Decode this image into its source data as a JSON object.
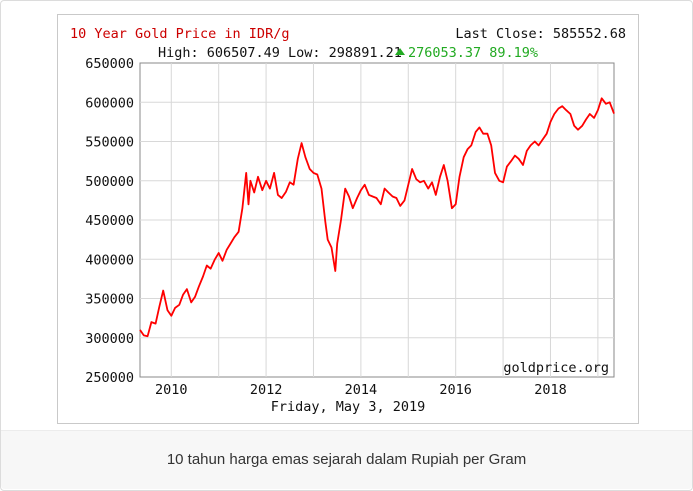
{
  "chart_data": {
    "type": "line",
    "title": "10 Year Gold Price in IDR/g",
    "last_close": "Last Close: 585552.68",
    "high_low": "High: 606507.49 Low: 298891.21",
    "change": "276053.37 89.19%",
    "date_label": "Friday, May 3, 2019",
    "watermark": "goldprice.org",
    "xlim": [
      2009.34,
      2019.34
    ],
    "ylim": [
      250000,
      650000
    ],
    "y_ticks": [
      250000,
      300000,
      350000,
      400000,
      450000,
      500000,
      550000,
      600000,
      650000
    ],
    "x_ticks": [
      2010,
      2012,
      2014,
      2016,
      2018
    ],
    "grid": true,
    "series": [
      {
        "color": "#ff0000",
        "x": [
          2009.34,
          2009.42,
          2009.5,
          2009.58,
          2009.67,
          2009.75,
          2009.83,
          2009.92,
          2010.0,
          2010.08,
          2010.17,
          2010.25,
          2010.33,
          2010.42,
          2010.5,
          2010.58,
          2010.67,
          2010.75,
          2010.83,
          2010.92,
          2011.0,
          2011.08,
          2011.17,
          2011.25,
          2011.33,
          2011.42,
          2011.5,
          2011.58,
          2011.63,
          2011.67,
          2011.75,
          2011.83,
          2011.92,
          2012.0,
          2012.08,
          2012.17,
          2012.25,
          2012.33,
          2012.42,
          2012.5,
          2012.58,
          2012.67,
          2012.75,
          2012.83,
          2012.92,
          2013.0,
          2013.08,
          2013.17,
          2013.25,
          2013.3,
          2013.38,
          2013.46,
          2013.5,
          2013.58,
          2013.67,
          2013.75,
          2013.83,
          2013.92,
          2014.0,
          2014.08,
          2014.17,
          2014.25,
          2014.33,
          2014.42,
          2014.5,
          2014.58,
          2014.67,
          2014.75,
          2014.83,
          2014.92,
          2015.0,
          2015.08,
          2015.17,
          2015.25,
          2015.33,
          2015.42,
          2015.5,
          2015.58,
          2015.67,
          2015.75,
          2015.83,
          2015.92,
          2016.0,
          2016.08,
          2016.17,
          2016.25,
          2016.33,
          2016.42,
          2016.5,
          2016.58,
          2016.67,
          2016.75,
          2016.83,
          2016.92,
          2017.0,
          2017.08,
          2017.17,
          2017.25,
          2017.33,
          2017.42,
          2017.5,
          2017.58,
          2017.67,
          2017.75,
          2017.83,
          2017.92,
          2018.0,
          2018.08,
          2018.17,
          2018.25,
          2018.33,
          2018.42,
          2018.5,
          2018.58,
          2018.67,
          2018.75,
          2018.83,
          2018.92,
          2019.0,
          2019.08,
          2019.17,
          2019.25,
          2019.34
        ],
        "y": [
          310000,
          303000,
          302000,
          320000,
          318000,
          340000,
          360000,
          335000,
          328000,
          338000,
          342000,
          355000,
          362000,
          345000,
          352000,
          365000,
          378000,
          392000,
          388000,
          400000,
          408000,
          398000,
          412000,
          420000,
          428000,
          435000,
          465000,
          510000,
          470000,
          500000,
          485000,
          505000,
          488000,
          500000,
          490000,
          510000,
          482000,
          478000,
          486000,
          498000,
          495000,
          528000,
          548000,
          530000,
          515000,
          510000,
          508000,
          490000,
          448000,
          425000,
          415000,
          385000,
          420000,
          450000,
          490000,
          480000,
          465000,
          478000,
          488000,
          495000,
          482000,
          480000,
          478000,
          470000,
          490000,
          485000,
          480000,
          478000,
          468000,
          475000,
          495000,
          515000,
          502000,
          498000,
          500000,
          490000,
          498000,
          482000,
          505000,
          520000,
          500000,
          465000,
          470000,
          505000,
          530000,
          540000,
          545000,
          562000,
          568000,
          560000,
          560000,
          545000,
          510000,
          500000,
          498000,
          518000,
          525000,
          532000,
          528000,
          520000,
          538000,
          545000,
          550000,
          545000,
          552000,
          560000,
          575000,
          585000,
          592000,
          595000,
          590000,
          585000,
          570000,
          565000,
          570000,
          578000,
          585000,
          580000,
          590000,
          605000,
          598000,
          600000,
          585552
        ]
      }
    ]
  },
  "caption": "10 tahun harga emas sejarah dalam Rupiah per Gram"
}
